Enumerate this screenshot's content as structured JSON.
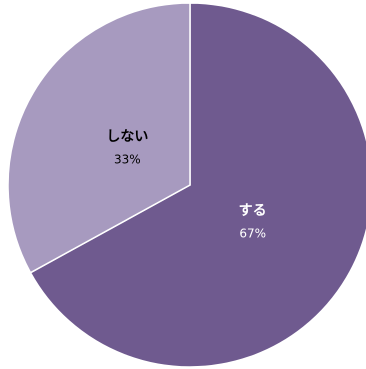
{
  "chart_data": {
    "type": "pie",
    "categories": [
      "する",
      "しない"
    ],
    "values": [
      67,
      33
    ],
    "value_labels": [
      "67%",
      "33%"
    ],
    "colors": [
      "#6f5a8f",
      "#a79abf"
    ],
    "label_colors": [
      "#ffffff",
      "#000000"
    ]
  }
}
